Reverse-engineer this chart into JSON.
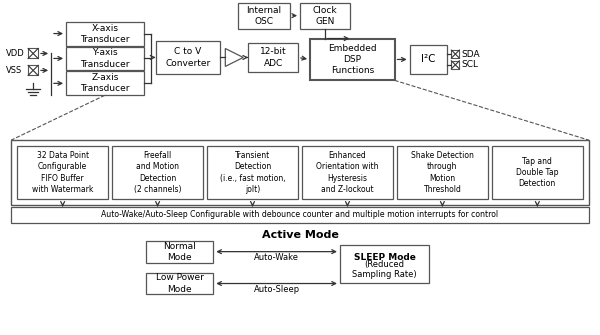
{
  "bg_color": "#ffffff",
  "edge_color": "#555555",
  "text_color": "#000000",
  "figsize": [
    6.0,
    3.35
  ],
  "dpi": 100,
  "transducers": [
    "X-axis\nTransducer",
    "Y-axis\nTransducer",
    "Z-axis\nTransducer"
  ],
  "dsp_boxes": [
    "32 Data Point\nConfigurable\nFIFO Buffer\nwith Watermark",
    "Freefall\nand Motion\nDetection\n(2 channels)",
    "Transient\nDetection\n(i.e., fast motion,\njolt)",
    "Enhanced\nOrientation with\nHysteresis\nand Z-lockout",
    "Shake Detection\nthrough\nMotion\nThreshold",
    "Tap and\nDouble Tap\nDetection"
  ],
  "autowake_text": "Auto-Wake/Auto-Sleep Configurable with debounce counter and multiple motion interrupts for control"
}
